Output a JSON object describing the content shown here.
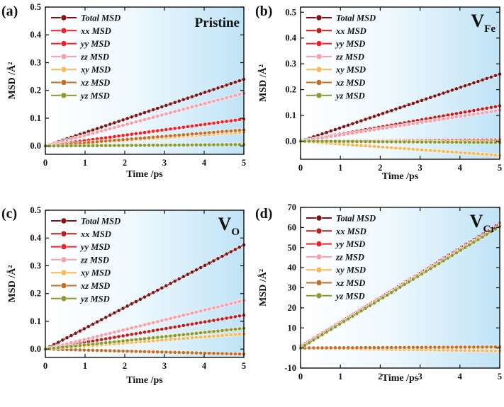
{
  "chart_data": [
    {
      "type": "line",
      "panel": "(a)",
      "annotation": {
        "main": "Pristine",
        "sub": ""
      },
      "xlabel": "Time /ps",
      "ylabel": "MSD /Å²",
      "xlim": [
        0,
        5
      ],
      "ylim": [
        -0.03,
        0.5
      ],
      "xticks": [
        0,
        1,
        2,
        3,
        4,
        5
      ],
      "yticks": [
        0.0,
        0.1,
        0.2,
        0.3,
        0.4,
        0.5
      ],
      "ytick_labels": [
        "0.0",
        "0.1",
        "0.2",
        "0.3",
        "0.4",
        "0.5"
      ],
      "legend_position": "top-left",
      "series": [
        {
          "name": "Total MSD",
          "color": "#7b1515",
          "values": [
            0,
            0.24
          ]
        },
        {
          "name": "xx MSD",
          "color": "#e8202a",
          "values": [
            0,
            0.097
          ]
        },
        {
          "name": "yy MSD",
          "color": "#f02028",
          "values": [
            0,
            0.097
          ]
        },
        {
          "name": "zz MSD",
          "color": "#f4a0aa",
          "values": [
            0,
            0.19
          ]
        },
        {
          "name": "xy MSD",
          "color": "#f7b85a",
          "values": [
            0,
            0.05
          ]
        },
        {
          "name": "xz MSD",
          "color": "#c07028",
          "values": [
            0,
            0.058
          ]
        },
        {
          "name": "yz MSD",
          "color": "#8a9a2a",
          "values": [
            0,
            0.005
          ]
        }
      ],
      "x": [
        0,
        5
      ]
    },
    {
      "type": "line",
      "panel": "(b)",
      "annotation": {
        "main": "V",
        "sub": "Fe"
      },
      "xlabel": "Time /ps",
      "ylabel": "MSD /Å²",
      "xlim": [
        0,
        5
      ],
      "ylim": [
        -0.07,
        0.52
      ],
      "xticks": [
        0,
        1,
        2,
        3,
        4,
        5
      ],
      "yticks": [
        0.0,
        0.1,
        0.2,
        0.3,
        0.4,
        0.5
      ],
      "ytick_labels": [
        "0.0",
        "0.1",
        "0.2",
        "0.3",
        "0.4",
        "0.5"
      ],
      "legend_position": "top-left",
      "series": [
        {
          "name": "Total MSD",
          "color": "#7b1515",
          "values": [
            0,
            0.26
          ]
        },
        {
          "name": "xx MSD",
          "color": "#b82020",
          "values": [
            0,
            0.137
          ]
        },
        {
          "name": "yy MSD",
          "color": "#f02028",
          "values": [
            0,
            0.005
          ]
        },
        {
          "name": "zz MSD",
          "color": "#f4a0aa",
          "values": [
            0,
            0.12
          ]
        },
        {
          "name": "xy MSD",
          "color": "#f7b85a",
          "values": [
            0,
            -0.055
          ]
        },
        {
          "name": "xz MSD",
          "color": "#c07028",
          "values": [
            0,
            0.0
          ]
        },
        {
          "name": "yz MSD",
          "color": "#8a9a2a",
          "values": [
            0,
            -0.005
          ]
        }
      ],
      "x": [
        0,
        5
      ]
    },
    {
      "type": "line",
      "panel": "(c)",
      "annotation": {
        "main": "V",
        "sub": "O"
      },
      "xlabel": "Time /ps",
      "ylabel": "MSD /Å²",
      "xlim": [
        0,
        5
      ],
      "ylim": [
        -0.03,
        0.5
      ],
      "xticks": [
        0,
        1,
        2,
        3,
        4,
        5
      ],
      "yticks": [
        0.0,
        0.1,
        0.2,
        0.3,
        0.4,
        0.5
      ],
      "ytick_labels": [
        "0.0",
        "0.1",
        "0.2",
        "0.3",
        "0.4",
        "0.5"
      ],
      "legend_position": "top-left",
      "series": [
        {
          "name": "Total MSD",
          "color": "#7b1515",
          "values": [
            0,
            0.375
          ]
        },
        {
          "name": "xx MSD",
          "color": "#b82020",
          "values": [
            0,
            0.122
          ]
        },
        {
          "name": "yy MSD",
          "color": "#f02028",
          "values": [
            0,
            0.075
          ]
        },
        {
          "name": "zz MSD",
          "color": "#f4a0aa",
          "values": [
            0,
            0.175
          ]
        },
        {
          "name": "xy MSD",
          "color": "#f7b85a",
          "values": [
            0,
            0.055
          ]
        },
        {
          "name": "xz MSD",
          "color": "#c07028",
          "values": [
            0,
            -0.018
          ]
        },
        {
          "name": "yz MSD",
          "color": "#8a9a2a",
          "values": [
            0,
            0.075
          ]
        }
      ],
      "x": [
        0,
        5
      ]
    },
    {
      "type": "line",
      "panel": "(d)",
      "annotation": {
        "main": "V",
        "sub": "Cr"
      },
      "xlabel": "Time /ps",
      "ylabel": "MSD /Å²",
      "xlim": [
        0,
        5
      ],
      "ylim": [
        -10,
        70
      ],
      "xticks": [
        0,
        1,
        2,
        3,
        4,
        5
      ],
      "yticks": [
        -10,
        0,
        10,
        20,
        30,
        40,
        50,
        60,
        70
      ],
      "ytick_labels": [
        "-10",
        "0",
        "10",
        "20",
        "30",
        "40",
        "50",
        "60",
        "70"
      ],
      "legend_position": "top-left",
      "series": [
        {
          "name": "Total MSD",
          "color": "#7b1515",
          "values": [
            1,
            62
          ]
        },
        {
          "name": "xx MSD",
          "color": "#b82020",
          "values": [
            1,
            61.5
          ]
        },
        {
          "name": "yy MSD",
          "color": "#f02028",
          "values": [
            1,
            61
          ]
        },
        {
          "name": "zz MSD",
          "color": "#f4a0aa",
          "values": [
            1,
            61
          ]
        },
        {
          "name": "xy MSD",
          "color": "#f7b85a",
          "values": [
            0,
            -1.5
          ]
        },
        {
          "name": "xz MSD",
          "color": "#c07028",
          "values": [
            0,
            0.5
          ]
        },
        {
          "name": "yz MSD",
          "color": "#8a9a2a",
          "values": [
            0,
            60.5
          ]
        }
      ],
      "x": [
        0,
        5
      ]
    }
  ]
}
